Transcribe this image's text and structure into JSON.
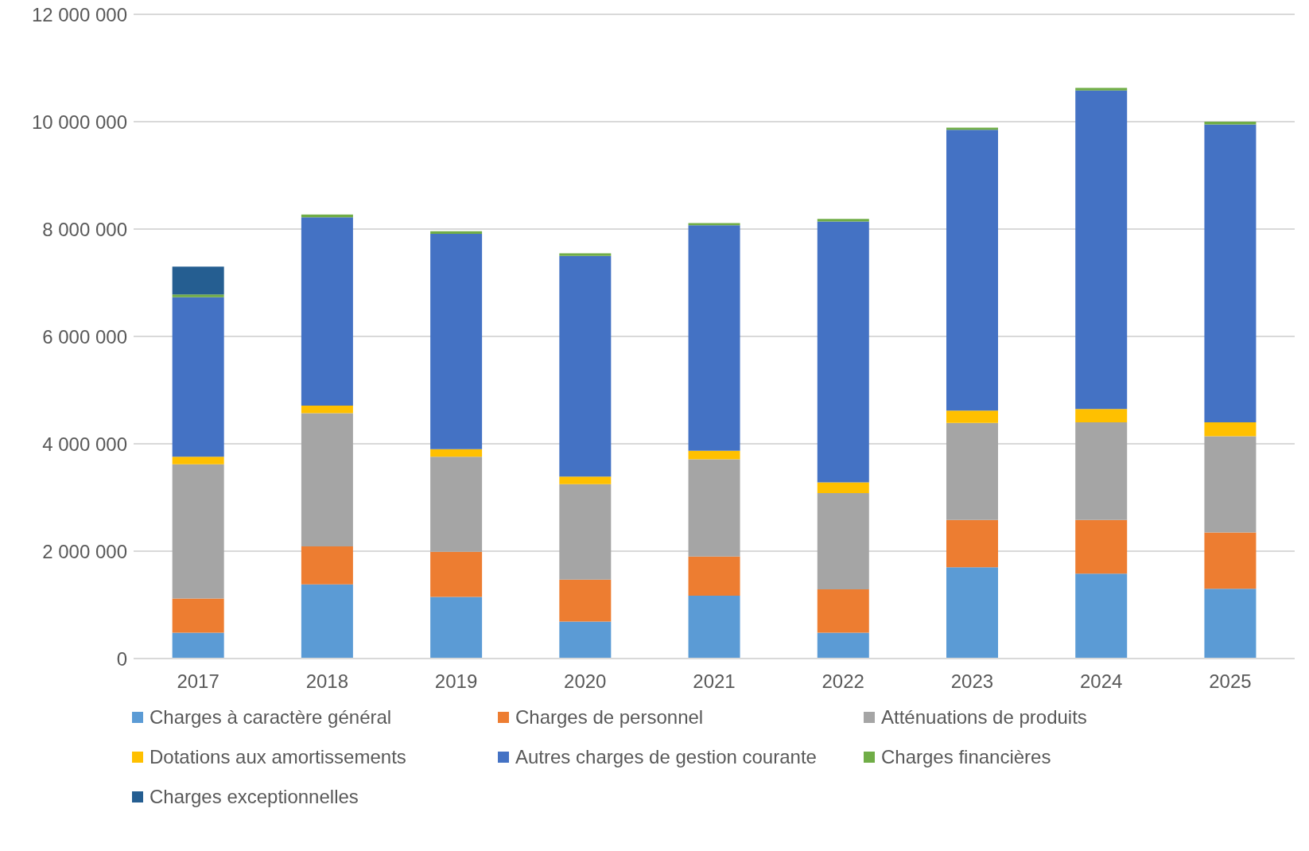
{
  "chart_data": {
    "type": "bar",
    "stacked": true,
    "categories": [
      "2017",
      "2018",
      "2019",
      "2020",
      "2021",
      "2022",
      "2023",
      "2024",
      "2025"
    ],
    "series": [
      {
        "name": "Charges à caractère général",
        "color": "#5b9bd5",
        "values": [
          480000,
          1380000,
          1150000,
          690000,
          1170000,
          480000,
          1700000,
          1580000,
          1300000
        ]
      },
      {
        "name": "Charges de personnel",
        "color": "#ed7d31",
        "values": [
          640000,
          710000,
          840000,
          780000,
          730000,
          810000,
          880000,
          1000000,
          1050000
        ]
      },
      {
        "name": "Atténuations de produits",
        "color": "#a5a5a5",
        "values": [
          2500000,
          2480000,
          1770000,
          1780000,
          1810000,
          1790000,
          1810000,
          1820000,
          1790000
        ]
      },
      {
        "name": "Dotations aux amortissements",
        "color": "#ffc000",
        "values": [
          140000,
          140000,
          140000,
          140000,
          160000,
          200000,
          230000,
          250000,
          260000
        ]
      },
      {
        "name": "Autres charges de gestion courante",
        "color": "#4472c4",
        "values": [
          2970000,
          3510000,
          4010000,
          4110000,
          4200000,
          4860000,
          5230000,
          5930000,
          5550000
        ]
      },
      {
        "name": "Charges financières",
        "color": "#70ad47",
        "values": [
          50000,
          50000,
          50000,
          50000,
          40000,
          50000,
          40000,
          50000,
          50000
        ]
      },
      {
        "name": "Charges exceptionnelles",
        "color": "#255e91",
        "values": [
          520000,
          0,
          0,
          0,
          0,
          0,
          0,
          0,
          0
        ]
      }
    ],
    "ylim": [
      0,
      12000000
    ],
    "yticks": [
      {
        "value": 0,
        "label": "0"
      },
      {
        "value": 2000000,
        "label": "2 000 000"
      },
      {
        "value": 4000000,
        "label": "4 000 000"
      },
      {
        "value": 6000000,
        "label": "6 000 000"
      },
      {
        "value": 8000000,
        "label": "8 000 000"
      },
      {
        "value": 10000000,
        "label": "10 000 000"
      },
      {
        "value": 12000000,
        "label": "12 000 000"
      }
    ],
    "grid": "y",
    "legend": "bottom"
  }
}
